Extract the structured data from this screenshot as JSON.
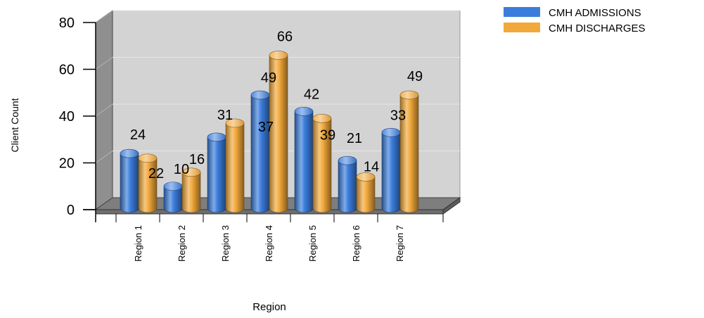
{
  "chart_data": {
    "type": "bar",
    "style": "3d-cylinder",
    "categories": [
      "Region 1",
      "Region 2",
      "Region 3",
      "Region 4",
      "Region 5",
      "Region 6",
      "Region 7"
    ],
    "series": [
      {
        "name": "CMH ADMISSIONS",
        "values": [
          24,
          10,
          31,
          49,
          42,
          21,
          33
        ],
        "color": "#3B7DDD"
      },
      {
        "name": "CMH DISCHARGES",
        "values": [
          22,
          16,
          37,
          66,
          39,
          14,
          49
        ],
        "color": "#F2A93B"
      }
    ],
    "xlabel": "Region",
    "ylabel": "Client Count",
    "ylim": [
      0,
      80
    ],
    "yticks": [
      0,
      20,
      40,
      60,
      80
    ],
    "grid": true,
    "legend_position": "top-right",
    "colors": {
      "plot_background": "#D3D3D3",
      "side_wall": "#8F8F8F",
      "floor": "#7E7E7E"
    }
  }
}
